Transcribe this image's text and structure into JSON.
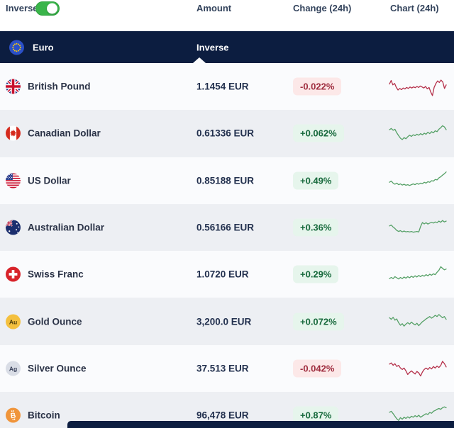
{
  "controls": {
    "inverse_label": "Inverse",
    "inverse_toggle_state": "on"
  },
  "column_headers": {
    "amount": "Amount",
    "change": "Change (24h)",
    "chart": "Chart (24h)"
  },
  "section_header": {
    "base_currency": "Euro",
    "mode_column": "Inverse",
    "flag": "eu"
  },
  "colors": {
    "header_navy": "#0c1d40",
    "row_light": "#fafbfd",
    "row_gray": "#edeff3",
    "toggle_green": "#3ab54a",
    "badge_up_bg": "#e6f5ec",
    "badge_up_text": "#186a3d",
    "badge_down_bg": "#fce8e8",
    "badge_down_text": "#9f2d3f",
    "spark_up": "#55a066",
    "spark_down": "#b5304a"
  },
  "rows": [
    {
      "name": "British Pound",
      "flag": "gbp",
      "amount": "1.1454 EUR",
      "change": "-0.022%",
      "direction": "down",
      "spark": [
        0.38,
        0.2,
        0.42,
        0.35,
        0.55,
        0.68,
        0.6,
        0.66,
        0.58,
        0.63,
        0.55,
        0.6,
        0.53,
        0.58,
        0.52,
        0.56,
        0.5,
        0.55,
        0.48,
        0.53,
        0.58,
        0.5,
        0.62,
        0.55,
        0.78,
        0.96,
        0.55,
        0.35,
        0.22,
        0.3,
        0.18,
        0.28,
        0.6,
        0.42
      ]
    },
    {
      "name": "Canadian Dollar",
      "flag": "cad",
      "amount": "0.61336 EUR",
      "change": "+0.062%",
      "direction": "up",
      "spark": [
        0.32,
        0.26,
        0.35,
        0.3,
        0.48,
        0.62,
        0.75,
        0.82,
        0.72,
        0.78,
        0.68,
        0.6,
        0.66,
        0.58,
        0.62,
        0.55,
        0.6,
        0.52,
        0.58,
        0.5,
        0.55,
        0.45,
        0.52,
        0.42,
        0.48,
        0.38,
        0.42,
        0.3,
        0.22,
        0.12,
        0.18,
        0.32
      ]
    },
    {
      "name": "US Dollar",
      "flag": "usd",
      "amount": "0.85188 EUR",
      "change": "+0.49%",
      "direction": "up",
      "spark": [
        0.58,
        0.52,
        0.62,
        0.68,
        0.62,
        0.7,
        0.66,
        0.72,
        0.68,
        0.73,
        0.7,
        0.74,
        0.7,
        0.66,
        0.7,
        0.64,
        0.68,
        0.62,
        0.65,
        0.58,
        0.62,
        0.55,
        0.58,
        0.5,
        0.52,
        0.44,
        0.46,
        0.36,
        0.3,
        0.22,
        0.15,
        0.06
      ]
    },
    {
      "name": "Australian Dollar",
      "flag": "aud",
      "amount": "0.56166 EUR",
      "change": "+0.36%",
      "direction": "up",
      "spark": [
        0.42,
        0.38,
        0.48,
        0.55,
        0.65,
        0.7,
        0.66,
        0.72,
        0.68,
        0.72,
        0.7,
        0.73,
        0.7,
        0.74,
        0.72,
        0.7,
        0.73,
        0.45,
        0.25,
        0.32,
        0.26,
        0.33,
        0.28,
        0.24,
        0.28,
        0.22,
        0.26,
        0.18,
        0.24,
        0.15,
        0.22,
        0.18
      ]
    },
    {
      "name": "Swiss Franc",
      "flag": "chf",
      "amount": "1.0720 EUR",
      "change": "+0.29%",
      "direction": "up",
      "spark": [
        0.72,
        0.66,
        0.72,
        0.62,
        0.68,
        0.74,
        0.66,
        0.72,
        0.64,
        0.7,
        0.62,
        0.68,
        0.6,
        0.66,
        0.58,
        0.64,
        0.56,
        0.62,
        0.55,
        0.6,
        0.52,
        0.58,
        0.5,
        0.55,
        0.48,
        0.52,
        0.4,
        0.3,
        0.12,
        0.2,
        0.28,
        0.24
      ]
    },
    {
      "name": "Gold Ounce",
      "flag": "gold",
      "amount": "3,200.0 EUR",
      "change": "+0.072%",
      "direction": "up",
      "spark": [
        0.3,
        0.38,
        0.28,
        0.42,
        0.36,
        0.55,
        0.68,
        0.6,
        0.72,
        0.62,
        0.55,
        0.62,
        0.52,
        0.6,
        0.66,
        0.58,
        0.7,
        0.6,
        0.5,
        0.44,
        0.36,
        0.3,
        0.24,
        0.32,
        0.26,
        0.18,
        0.24,
        0.14,
        0.22,
        0.3,
        0.24,
        0.38
      ]
    },
    {
      "name": "Silver Ounce",
      "flag": "silver",
      "amount": "37.513 EUR",
      "change": "-0.042%",
      "direction": "down",
      "spark": [
        0.28,
        0.22,
        0.34,
        0.26,
        0.4,
        0.34,
        0.48,
        0.55,
        0.48,
        0.62,
        0.8,
        0.7,
        0.62,
        0.7,
        0.78,
        0.65,
        0.72,
        0.88,
        0.68,
        0.55,
        0.48,
        0.55,
        0.45,
        0.52,
        0.4,
        0.48,
        0.38,
        0.45,
        0.35,
        0.14,
        0.25,
        0.42
      ]
    },
    {
      "name": "Bitcoin",
      "flag": "btc",
      "amount": "96,478 EUR",
      "change": "+0.87%",
      "direction": "up",
      "spark": [
        0.35,
        0.3,
        0.42,
        0.55,
        0.68,
        0.76,
        0.62,
        0.7,
        0.6,
        0.66,
        0.58,
        0.64,
        0.55,
        0.6,
        0.52,
        0.58,
        0.5,
        0.6,
        0.54,
        0.48,
        0.42,
        0.46,
        0.36,
        0.4,
        0.3,
        0.26,
        0.2,
        0.16,
        0.2,
        0.12,
        0.08,
        0.12
      ]
    }
  ]
}
